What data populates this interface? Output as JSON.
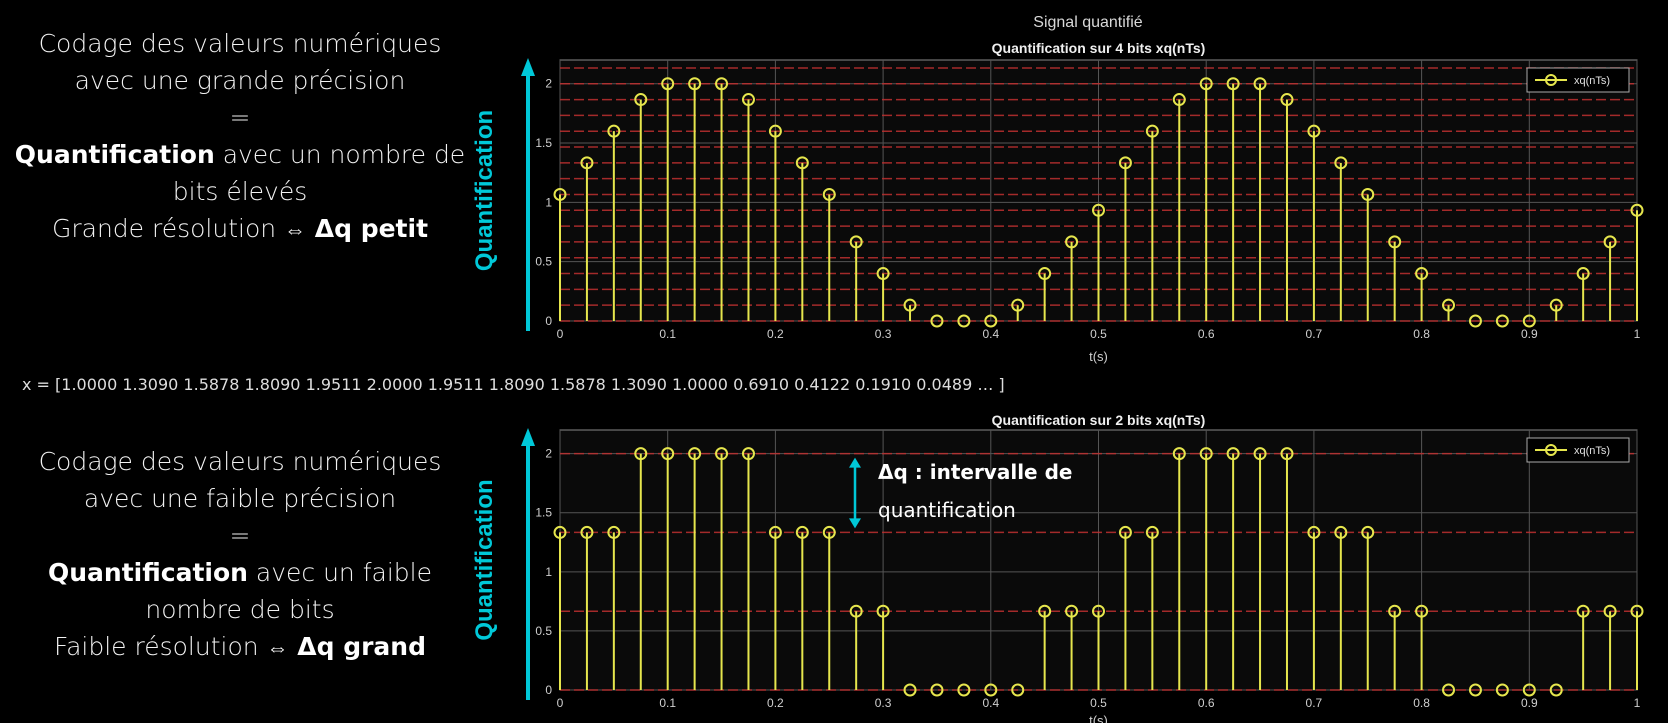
{
  "figure_title": "Signal quantifié",
  "side_top": {
    "line1": "Codage des valeurs numériques",
    "line2": "avec une grande précision",
    "eq": "=",
    "bold": "Quantification",
    "line3_rest": " avec  un nombre de",
    "line4": "bits élevés",
    "line5_text": "Grande résolution ",
    "arrow": "⇔",
    "line5_bold": " Δq petit"
  },
  "side_bottom": {
    "line1": "Codage des valeurs numériques",
    "line2": "avec une faible précision",
    "eq": "=",
    "bold": "Quantification",
    "line3_rest": " avec  un faible",
    "line4": "nombre de bits",
    "line5_text": "Faible résolution ",
    "arrow": "⇔",
    "line5_bold": " Δq grand"
  },
  "x_vector": "x = [1.0000    1.3090    1.5878    1.8090    1.9511    2.0000    1.9511    1.8090    1.5878    1.3090    1.0000    0.6910    0.4122    0.1910    0.0489 … ]",
  "annotation_line1": "Δq : intervalle de",
  "annotation_line2": "quantification",
  "colors": {
    "stem": "#e6e64d",
    "arrow": "#00c8d8",
    "grid": "#555555",
    "quant_line": "#c03030"
  },
  "chart_data": [
    {
      "type": "stem",
      "title": "Quantification sur 4 bits xq(nTs)",
      "xlabel": "t(s)",
      "ylabel": "Quantification",
      "legend": "xq(nTs)",
      "legend_position": "top-right",
      "grid": true,
      "xlim": [
        0,
        1
      ],
      "ylim": [
        0,
        2.2
      ],
      "xticks": [
        "0",
        "0.1",
        "0.2",
        "0.3",
        "0.4",
        "0.5",
        "0.6",
        "0.7",
        "0.8",
        "0.9",
        "1"
      ],
      "yticks": [
        "0",
        "0.5",
        "1",
        "1.5",
        "2"
      ],
      "quant_step": 0.1333,
      "x": [
        0,
        0.025,
        0.05,
        0.075,
        0.1,
        0.125,
        0.15,
        0.175,
        0.2,
        0.225,
        0.25,
        0.275,
        0.3,
        0.325,
        0.35,
        0.375,
        0.4,
        0.425,
        0.45,
        0.475,
        0.5,
        0.525,
        0.55,
        0.575,
        0.6,
        0.625,
        0.65,
        0.675,
        0.7,
        0.725,
        0.75,
        0.775,
        0.8,
        0.825,
        0.85,
        0.875,
        0.9,
        0.925,
        0.95,
        0.975,
        1.0
      ],
      "y": [
        1.0667,
        1.3333,
        1.6,
        1.8667,
        2,
        2,
        2,
        1.8667,
        1.6,
        1.3333,
        1.0667,
        0.6667,
        0.4,
        0.1333,
        0,
        0,
        0,
        0.1333,
        0.4,
        0.6667,
        0.9333,
        1.3333,
        1.6,
        1.8667,
        2,
        2,
        2,
        1.8667,
        1.6,
        1.3333,
        1.0667,
        0.6667,
        0.4,
        0.1333,
        0,
        0,
        0,
        0.1333,
        0.4,
        0.6667,
        0.9333
      ]
    },
    {
      "type": "stem",
      "title": "Quantification sur 2 bits xq(nTs)",
      "xlabel": "t(s)",
      "ylabel": "Quantification",
      "legend": "xq(nTs)",
      "legend_position": "top-right",
      "grid": true,
      "xlim": [
        0,
        1
      ],
      "ylim": [
        0,
        2.2
      ],
      "xticks": [
        "0",
        "0.1",
        "0.2",
        "0.3",
        "0.4",
        "0.5",
        "0.6",
        "0.7",
        "0.8",
        "0.9",
        "1"
      ],
      "yticks": [
        "0",
        "0.5",
        "1",
        "1.5",
        "2"
      ],
      "quant_step": 0.6667,
      "x": [
        0,
        0.025,
        0.05,
        0.075,
        0.1,
        0.125,
        0.15,
        0.175,
        0.2,
        0.225,
        0.25,
        0.275,
        0.3,
        0.325,
        0.35,
        0.375,
        0.4,
        0.425,
        0.45,
        0.475,
        0.5,
        0.525,
        0.55,
        0.575,
        0.6,
        0.625,
        0.65,
        0.675,
        0.7,
        0.725,
        0.75,
        0.775,
        0.8,
        0.825,
        0.85,
        0.875,
        0.9,
        0.925,
        0.95,
        0.975,
        1.0
      ],
      "y": [
        1.3333,
        1.3333,
        1.3333,
        2,
        2,
        2,
        2,
        2,
        1.3333,
        1.3333,
        1.3333,
        0.6667,
        0.6667,
        0,
        0,
        0,
        0,
        0,
        0.6667,
        0.6667,
        0.6667,
        1.3333,
        1.3333,
        2,
        2,
        2,
        2,
        2,
        1.3333,
        1.3333,
        1.3333,
        0.6667,
        0.6667,
        0,
        0,
        0,
        0,
        0,
        0.6667,
        0.6667,
        0.6667
      ]
    }
  ]
}
